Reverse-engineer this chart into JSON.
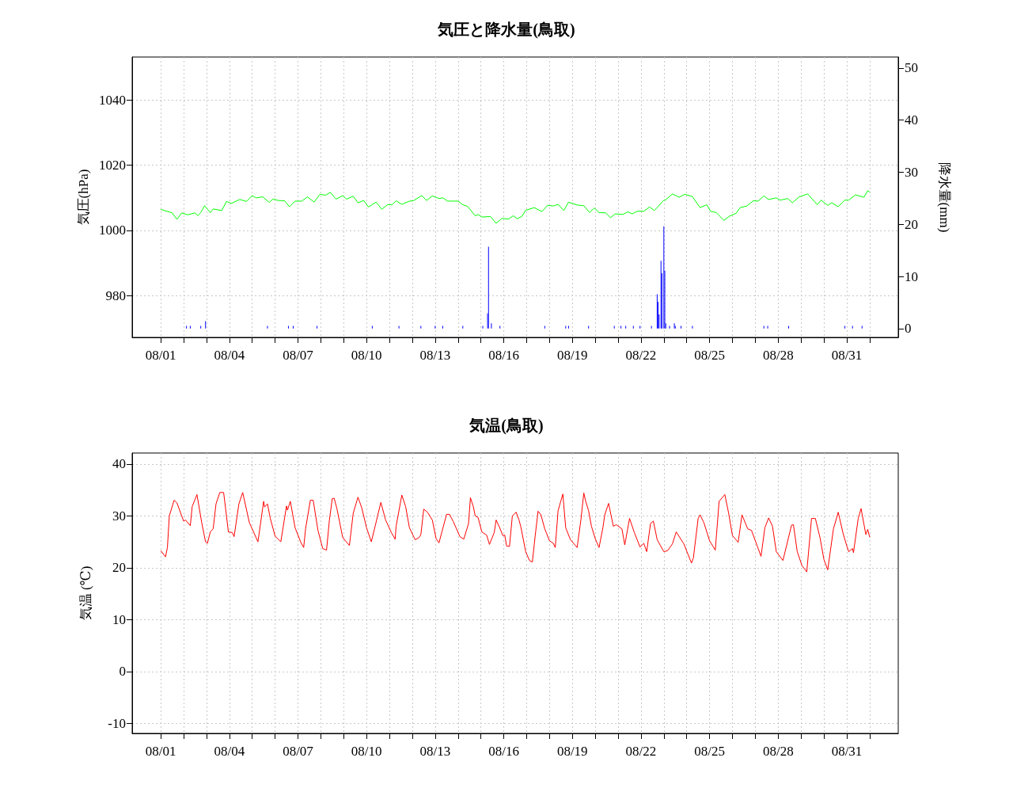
{
  "chart_data": [
    {
      "type": "line",
      "title": "気圧と降水量(鳥取)",
      "ylabel": "気圧(hPa)",
      "y2label": "降水量(mm)",
      "grid": true,
      "marker": "none",
      "line_style": "solid",
      "xlim": [
        "--07-30T18:00",
        "--09-02T06:00"
      ],
      "xticks": [
        {
          "value": "--08-01",
          "label": "08/01"
        },
        {
          "value": "--08-02",
          "label": null
        },
        {
          "value": "--08-03",
          "label": null
        },
        {
          "value": "--08-04",
          "label": "08/04"
        },
        {
          "value": "--08-05",
          "label": null
        },
        {
          "value": "--08-06",
          "label": null
        },
        {
          "value": "--08-07",
          "label": "08/07"
        },
        {
          "value": "--08-08",
          "label": null
        },
        {
          "value": "--08-09",
          "label": null
        },
        {
          "value": "--08-10",
          "label": "08/10"
        },
        {
          "value": "--08-11",
          "label": null
        },
        {
          "value": "--08-12",
          "label": null
        },
        {
          "value": "--08-13",
          "label": "08/13"
        },
        {
          "value": "--08-14",
          "label": null
        },
        {
          "value": "--08-15",
          "label": null
        },
        {
          "value": "--08-16",
          "label": "08/16"
        },
        {
          "value": "--08-17",
          "label": null
        },
        {
          "value": "--08-18",
          "label": null
        },
        {
          "value": "--08-19",
          "label": "08/19"
        },
        {
          "value": "--08-20",
          "label": null
        },
        {
          "value": "--08-21",
          "label": null
        },
        {
          "value": "--08-22",
          "label": "08/22"
        },
        {
          "value": "--08-23",
          "label": null
        },
        {
          "value": "--08-24",
          "label": null
        },
        {
          "value": "--08-25",
          "label": "08/25"
        },
        {
          "value": "--08-26",
          "label": null
        },
        {
          "value": "--08-27",
          "label": null
        },
        {
          "value": "--08-28",
          "label": "08/28"
        },
        {
          "value": "--08-29",
          "label": null
        },
        {
          "value": "--08-30",
          "label": null
        },
        {
          "value": "--08-31",
          "label": "08/31"
        },
        {
          "value": "--09-01",
          "label": null
        }
      ],
      "ylim": [
        967.2,
        1053.2
      ],
      "yticks": [
        980,
        1000,
        1020,
        1040
      ],
      "y2lim": [
        -1.7,
        52.1
      ],
      "y2ticks": [
        0,
        10,
        20,
        30,
        40,
        50
      ],
      "series": [
        {
          "color": "#00ff00",
          "x": [
            "--08-01T00:00",
            "--08-01T04:00",
            "--08-01T12:00",
            "--08-01T17:00",
            "--08-01T22:00",
            "--08-02T04:00",
            "--08-02T12:00",
            "--08-02T15:00",
            "--08-02T18:00",
            "--08-02T22:00",
            "--08-03T04:00",
            "--08-03T07:00",
            "--08-03T16:00",
            "--08-03T21:00",
            "--08-04T02:00",
            "--08-04T11:00",
            "--08-04T18:00",
            "--08-05T00:00",
            "--08-05T04:00",
            "--08-05T11:00",
            "--08-05T18:00",
            "--08-05T22:00",
            "--08-06T03:00",
            "--08-06T10:00",
            "--08-06T15:00",
            "--08-06T21:00",
            "--08-07T04:00",
            "--08-07T10:00",
            "--08-07T17:00",
            "--08-07T23:00",
            "--08-08T05:00",
            "--08-08T10:00",
            "--08-08T16:00",
            "--08-08T23:00",
            "--08-09T03:00",
            "--08-09T10:00",
            "--08-09T15:00",
            "--08-09T21:00",
            "--08-10T02:00",
            "--08-10T10:00",
            "--08-10T16:00",
            "--08-10T22:00",
            "--08-11T03:00",
            "--08-11T07:00",
            "--08-11T13:00",
            "--08-11T21:00",
            "--08-12T01:00",
            "--08-12T10:00",
            "--08-12T15:00",
            "--08-12T21:00",
            "--08-13T04:00",
            "--08-13T08:00",
            "--08-13T13:00",
            "--08-14T00:00",
            "--08-14T05:00",
            "--08-14T10:00",
            "--08-14T18:00",
            "--08-14T21:00",
            "--08-15T01:00",
            "--08-15T10:00",
            "--08-15T16:00",
            "--08-15T22:00",
            "--08-16T05:00",
            "--08-16T10:00",
            "--08-16T14:00",
            "--08-16T19:00",
            "--08-16T23:00",
            "--08-17T08:00",
            "--08-17T16:00",
            "--08-17T22:00",
            "--08-18T04:00",
            "--08-18T09:00",
            "--08-18T15:00",
            "--08-18T20:00",
            "--08-19T05:00",
            "--08-19T12:00",
            "--08-19T18:00",
            "--08-19T23:00",
            "--08-20T04:00",
            "--08-20T11:00",
            "--08-20T16:00",
            "--08-20T21:00",
            "--08-21T05:00",
            "--08-21T10:00",
            "--08-21T15:00",
            "--08-21T20:00",
            "--08-22T03:00",
            "--08-22T09:00",
            "--08-22T14:00",
            "--08-23T00:00",
            "--08-23T02:00",
            "--08-23T09:00",
            "--08-23T16:00",
            "--08-23T22:00",
            "--08-24T06:00",
            "--08-24T14:00",
            "--08-24T21:00",
            "--08-25T01:00",
            "--08-25T07:00",
            "--08-25T15:00",
            "--08-25T21:00",
            "--08-26T04:00",
            "--08-26T08:00",
            "--08-26T15:00",
            "--08-26T22:00",
            "--08-27T03:00",
            "--08-27T09:00",
            "--08-27T14:00",
            "--08-27T22:00",
            "--08-28T02:00",
            "--08-28T10:00",
            "--08-28T15:00",
            "--08-28T22:00",
            "--08-29T07:00",
            "--08-29T17:00",
            "--08-29T21:00",
            "--08-30T04:00",
            "--08-30T08:00",
            "--08-30T15:00",
            "--08-30T22:00",
            "--08-31T02:00",
            "--08-31T09:00",
            "--08-31T18:00",
            "--08-31T22:00",
            "--09-01T00:00"
          ],
          "values": [
            1006.5,
            1006.1,
            1005.4,
            1003.4,
            1005.4,
            1004.8,
            1005.4,
            1004.5,
            1005.5,
            1007.6,
            1005.5,
            1006.6,
            1006.1,
            1008.9,
            1008.3,
            1009.5,
            1008.9,
            1010.7,
            1010,
            1010.3,
            1008.6,
            1009.7,
            1009.2,
            1009.1,
            1007.3,
            1009,
            1009,
            1010.3,
            1008.7,
            1011.1,
            1010.8,
            1011.7,
            1009.6,
            1010.7,
            1009.6,
            1010.5,
            1008.5,
            1009.2,
            1007.2,
            1008.7,
            1006.5,
            1007.9,
            1007.9,
            1009.1,
            1008,
            1009,
            1009.1,
            1010.7,
            1009.2,
            1010.6,
            1009.8,
            1010,
            1009,
            1009,
            1007.9,
            1007.4,
            1004.5,
            1004.9,
            1004.1,
            1004.3,
            1002.2,
            1003.7,
            1003.5,
            1004.5,
            1003.6,
            1004.3,
            1006.2,
            1007,
            1005.8,
            1007.7,
            1007.5,
            1008,
            1006.1,
            1008.7,
            1007.8,
            1007.6,
            1005.5,
            1006.9,
            1005.5,
            1005.4,
            1003.9,
            1005.1,
            1004.9,
            1005.7,
            1005.1,
            1005.9,
            1005.9,
            1007.2,
            1006.1,
            1009.3,
            1009.4,
            1011.2,
            1010.2,
            1011.1,
            1010.4,
            1007,
            1007.9,
            1005.9,
            1005.5,
            1003.1,
            1004.4,
            1005.3,
            1007,
            1007.5,
            1009.1,
            1009,
            1010.6,
            1009.5,
            1010,
            1009.3,
            1009.8,
            1008.5,
            1010.3,
            1011.2,
            1007.9,
            1009.3,
            1007.7,
            1008.5,
            1007.3,
            1009.3,
            1009.3,
            1010.9,
            1010.2,
            1012.2,
            1011.8
          ]
        },
        {
          "type": "bar",
          "axis": "y2",
          "color": "#0000ff",
          "x": [
            "--08-02T03:00",
            "--08-02T07:00",
            "--08-02T18:00",
            "--08-02T23:00",
            "--08-05T16:00",
            "--08-06T14:00",
            "--08-06T19:00",
            "--08-07T20:00",
            "--08-10T06:00",
            "--08-11T10:00",
            "--08-12T09:00",
            "--08-13T00:00",
            "--08-13T08:00",
            "--08-14T05:00",
            "--08-15T02:00",
            "--08-15T07:00",
            "--08-15T08:00",
            "--08-15T11:00",
            "--08-15T20:00",
            "--08-17T19:00",
            "--08-18T17:00",
            "--08-18T20:00",
            "--08-19T17:00",
            "--08-20T20:00",
            "--08-21T03:00",
            "--08-21T08:00",
            "--08-21T16:00",
            "--08-21T23:00",
            "--08-22T11:00",
            "--08-22T17:00",
            "--08-22T18:00",
            "--08-22T19:00",
            "--08-22T21:00",
            "--08-22T22:00",
            "--08-23T00:00",
            "--08-23T01:00",
            "--08-23T02:00",
            "--08-23T06:00",
            "--08-23T11:00",
            "--08-23T12:00",
            "--08-23T18:00",
            "--08-24T06:00",
            "--08-27T09:00",
            "--08-27T13:00",
            "--08-28T11:00",
            "--08-30T22:00",
            "--08-31T06:00",
            "--08-31T16:00"
          ],
          "values": [
            0.5,
            0.5,
            0.5,
            1.4,
            0.5,
            0.5,
            0.5,
            0.5,
            0.5,
            0.5,
            0.5,
            0.5,
            0.5,
            0.5,
            0.5,
            2.9,
            15.7,
            1,
            0.5,
            0.5,
            0.5,
            0.5,
            0.5,
            0.5,
            0.5,
            0.5,
            0.5,
            0.5,
            0.5,
            6.6,
            5.1,
            2.7,
            13,
            10.6,
            19.6,
            11.1,
            1,
            0.5,
            1,
            0.5,
            0.5,
            0.5,
            0.5,
            0.5,
            0.5,
            0.5,
            0.5,
            0.5
          ]
        }
      ]
    },
    {
      "type": "line",
      "title": "気温(鳥取)",
      "ylabel": "気温 (℃)",
      "grid": true,
      "marker": "none",
      "line_style": "solid",
      "xlim": [
        "--07-30T18:00",
        "--09-02T06:00"
      ],
      "xticks": [
        {
          "value": "--08-01",
          "label": "08/01"
        },
        {
          "value": "--08-02",
          "label": null
        },
        {
          "value": "--08-03",
          "label": null
        },
        {
          "value": "--08-04",
          "label": "08/04"
        },
        {
          "value": "--08-05",
          "label": null
        },
        {
          "value": "--08-06",
          "label": null
        },
        {
          "value": "--08-07",
          "label": "08/07"
        },
        {
          "value": "--08-08",
          "label": null
        },
        {
          "value": "--08-09",
          "label": null
        },
        {
          "value": "--08-10",
          "label": "08/10"
        },
        {
          "value": "--08-11",
          "label": null
        },
        {
          "value": "--08-12",
          "label": null
        },
        {
          "value": "--08-13",
          "label": "08/13"
        },
        {
          "value": "--08-14",
          "label": null
        },
        {
          "value": "--08-15",
          "label": null
        },
        {
          "value": "--08-16",
          "label": "08/16"
        },
        {
          "value": "--08-17",
          "label": null
        },
        {
          "value": "--08-18",
          "label": null
        },
        {
          "value": "--08-19",
          "label": "08/19"
        },
        {
          "value": "--08-20",
          "label": null
        },
        {
          "value": "--08-21",
          "label": null
        },
        {
          "value": "--08-22",
          "label": "08/22"
        },
        {
          "value": "--08-23",
          "label": null
        },
        {
          "value": "--08-24",
          "label": null
        },
        {
          "value": "--08-25",
          "label": "08/25"
        },
        {
          "value": "--08-26",
          "label": null
        },
        {
          "value": "--08-27",
          "label": null
        },
        {
          "value": "--08-28",
          "label": "08/28"
        },
        {
          "value": "--08-29",
          "label": null
        },
        {
          "value": "--08-30",
          "label": null
        },
        {
          "value": "--08-31",
          "label": "08/31"
        },
        {
          "value": "--09-01",
          "label": null
        }
      ],
      "ylim": [
        -11.9,
        42.1
      ],
      "yticks": [
        -10,
        0,
        10,
        20,
        30,
        40
      ],
      "series": [
        {
          "color": "#ff0000",
          "x": [
            "--08-01T00:00",
            "--08-01T05:00",
            "--08-01T07:00",
            "--08-01T09:00",
            "--08-01T14:00",
            "--08-01T17:00",
            "--08-02T00:00",
            "--08-02T02:00",
            "--08-02T07:00",
            "--08-02T09:00",
            "--08-02T14:00",
            "--08-02T19:00",
            "--08-02T23:00",
            "--08-03T01:00",
            "--08-03T04:00",
            "--08-03T07:00",
            "--08-03T10:00",
            "--08-03T14:00",
            "--08-03T18:00",
            "--08-03T23:00",
            "--08-04T03:00",
            "--08-04T05:00",
            "--08-04T10:00",
            "--08-04T14:00",
            "--08-04T21:00",
            "--08-05T06:00",
            "--08-05T12:00",
            "--08-05T13:00",
            "--08-05T16:00",
            "--08-05T19:00",
            "--08-06T00:00",
            "--08-06T06:00",
            "--08-06T12:00",
            "--08-06T13:00",
            "--08-06T16:00",
            "--08-06T21:00",
            "--08-07T03:00",
            "--08-07T06:00",
            "--08-07T08:00",
            "--08-07T13:00",
            "--08-07T16:00",
            "--08-07T21:00",
            "--08-08T02:00",
            "--08-08T06:00",
            "--08-08T09:00",
            "--08-08T12:00",
            "--08-08T14:00",
            "--08-08T17:00",
            "--08-08T23:00",
            "--08-09T06:00",
            "--08-09T10:00",
            "--08-09T15:00",
            "--08-09T19:00",
            "--08-10T00:00",
            "--08-10T05:00",
            "--08-10T09:00",
            "--08-10T15:00",
            "--08-10T20:00",
            "--08-11T02:00",
            "--08-11T06:00",
            "--08-11T07:00",
            "--08-11T13:00",
            "--08-11T17:00",
            "--08-11T21:00",
            "--08-12T03:00",
            "--08-12T07:00",
            "--08-12T09:00",
            "--08-12T12:00",
            "--08-12T16:00",
            "--08-12T21:00",
            "--08-13T01:00",
            "--08-13T04:00",
            "--08-13T12:00",
            "--08-13T15:00",
            "--08-13T19:00",
            "--08-14T02:00",
            "--08-14T06:00",
            "--08-14T11:00",
            "--08-14T13:00",
            "--08-14T16:00",
            "--08-14T18:00",
            "--08-14T21:00",
            "--08-15T01:00",
            "--08-15T06:00",
            "--08-15T09:00",
            "--08-15T14:00",
            "--08-15T16:00",
            "--08-15T20:00",
            "--08-15T23:00",
            "--08-16T01:00",
            "--08-16T03:00",
            "--08-16T06:00",
            "--08-16T09:00",
            "--08-16T13:00",
            "--08-16T16:00",
            "--08-16T18:00",
            "--08-16T23:00",
            "--08-17T03:00",
            "--08-17T06:00",
            "--08-17T09:00",
            "--08-17T12:00",
            "--08-17T15:00",
            "--08-17T19:00",
            "--08-18T00:00",
            "--08-18T04:00",
            "--08-18T06:00",
            "--08-18T09:00",
            "--08-18T14:00",
            "--08-18T17:00",
            "--08-18T22:00",
            "--08-19T05:00",
            "--08-19T09:00",
            "--08-19T12:00",
            "--08-19T14:00",
            "--08-19T17:00",
            "--08-19T20:00",
            "--08-20T00:00",
            "--08-20T04:00",
            "--08-20T08:00",
            "--08-20T10:00",
            "--08-20T14:00",
            "--08-20T19:00",
            "--08-20T22:00",
            "--08-21T04:00",
            "--08-21T07:00",
            "--08-21T12:00",
            "--08-21T17:00",
            "--08-21T23:00",
            "--08-22T03:00",
            "--08-22T06:00",
            "--08-22T10:00",
            "--08-22T13:00",
            "--08-22T17:00",
            "--08-23T00:00",
            "--08-23T04:00",
            "--08-23T09:00",
            "--08-23T13:00",
            "--08-23T21:00",
            "--08-24T05:00",
            "--08-24T07:00",
            "--08-24T12:00",
            "--08-24T14:00",
            "--08-24T18:00",
            "--08-25T00:00",
            "--08-25T06:00",
            "--08-25T10:00",
            "--08-25T16:00",
            "--08-25T20:00",
            "--08-26T00:00",
            "--08-26T06:00",
            "--08-26T10:00",
            "--08-26T16:00",
            "--08-26T20:00",
            "--08-27T02:00",
            "--08-27T06:00",
            "--08-27T10:00",
            "--08-27T14:00",
            "--08-27T18:00",
            "--08-27T22:00",
            "--08-28T05:00",
            "--08-28T14:00",
            "--08-28T16:00",
            "--08-28T20:00",
            "--08-29T01:00",
            "--08-29T06:00",
            "--08-29T11:00",
            "--08-29T15:00",
            "--08-29T20:00",
            "--08-30T00:00",
            "--08-30T04:00",
            "--08-30T10:00",
            "--08-30T15:00",
            "--08-30T20:00",
            "--08-31T00:00",
            "--08-31T02:00",
            "--08-31T06:00",
            "--08-31T07:00",
            "--08-31T12:00",
            "--08-31T15:00",
            "--08-31T20:00",
            "--08-31T22:00",
            "--09-01T00:00"
          ],
          "values": [
            23.3,
            22.1,
            23.9,
            30,
            33,
            32.5,
            29,
            29.2,
            28.1,
            31.8,
            34.1,
            28.7,
            25,
            24.7,
            26.9,
            27.5,
            32.3,
            34.5,
            34.5,
            26.9,
            26.8,
            26,
            32.3,
            34.5,
            28.7,
            25,
            32.8,
            31.7,
            32.3,
            29.5,
            26.1,
            25,
            31.9,
            31.1,
            32.8,
            27.7,
            24.9,
            23.9,
            27.5,
            33,
            33,
            27.2,
            23.7,
            23.4,
            29.2,
            33.3,
            33.4,
            31.3,
            25.8,
            24.3,
            30.5,
            33.6,
            31.5,
            27.7,
            25,
            28,
            32.6,
            29.2,
            26.8,
            25.5,
            28,
            34,
            31.8,
            27.7,
            25.4,
            25.8,
            26.4,
            31.3,
            30.7,
            29.2,
            25.6,
            24.8,
            30.3,
            30.3,
            28.9,
            26,
            25.5,
            28.5,
            33.5,
            31.8,
            30,
            29.7,
            26.9,
            26.3,
            24.5,
            26.8,
            29.2,
            27.6,
            26.2,
            26.3,
            24.2,
            24.1,
            30,
            30.7,
            29.2,
            27.8,
            23.1,
            21.4,
            21.1,
            26.2,
            30.9,
            30.2,
            27.5,
            25.2,
            24.7,
            23.9,
            31,
            34.2,
            27.7,
            25.4,
            23.9,
            29.3,
            34.4,
            32.8,
            31,
            28,
            25.6,
            23.9,
            27.7,
            30.2,
            32.4,
            28,
            28.3,
            27.5,
            24.4,
            29.5,
            26.8,
            24,
            24.7,
            23.1,
            28.5,
            29,
            25.4,
            23.1,
            23.3,
            24.6,
            26.9,
            24.6,
            20.9,
            21.9,
            29.5,
            30.2,
            28.7,
            25.2,
            23.4,
            32.8,
            34.1,
            30.5,
            26.2,
            24.9,
            30.2,
            27.5,
            27.2,
            24.2,
            22.2,
            27.7,
            29.6,
            28,
            23.1,
            21.4,
            28.2,
            28.3,
            23.1,
            20.4,
            19.2,
            29.5,
            29.5,
            25.7,
            21.6,
            19.6,
            27.5,
            30.7,
            26.7,
            24.2,
            23.1,
            23.7,
            22.9,
            29.5,
            31.4,
            26.4,
            27.4,
            25.9
          ]
        }
      ]
    }
  ]
}
